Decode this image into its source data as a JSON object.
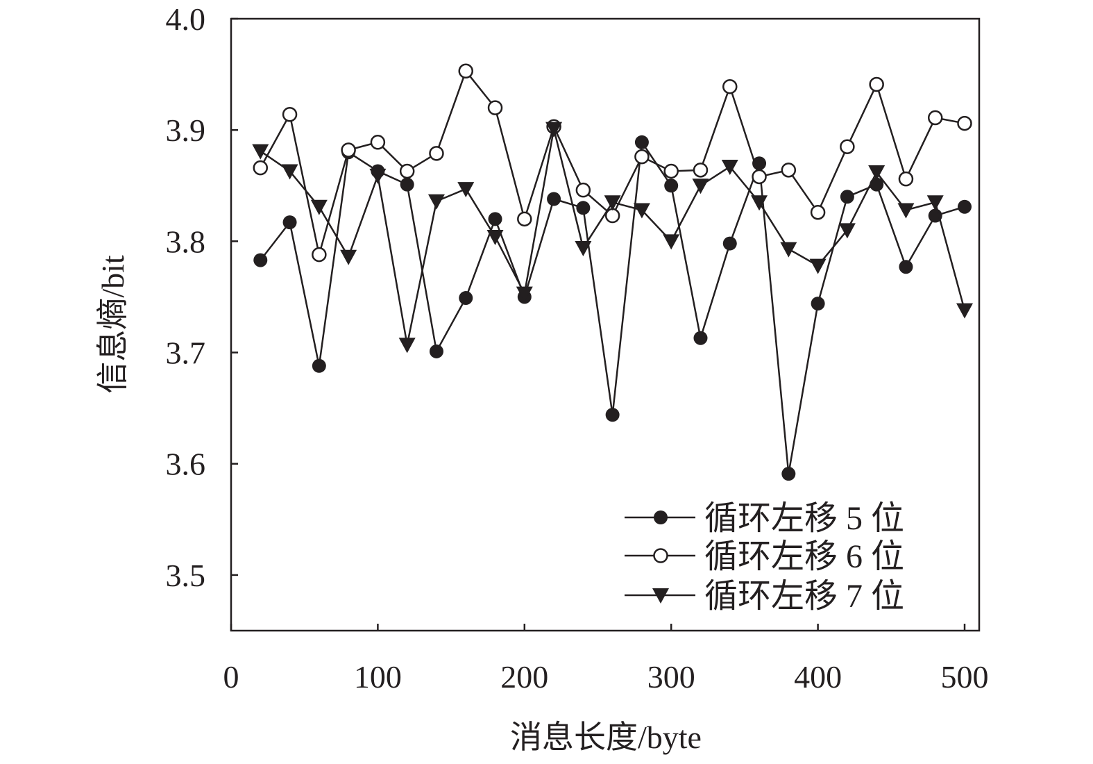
{
  "chart_data": {
    "type": "line",
    "title": "",
    "xlabel": "消息长度/byte",
    "ylabel": "信息熵/bit",
    "xlim": [
      0,
      510
    ],
    "ylim": [
      3.45,
      4.0
    ],
    "xticks": [
      0,
      100,
      200,
      300,
      400,
      500
    ],
    "xtick_labels": [
      "0",
      "100",
      "200",
      "300",
      "400",
      "500"
    ],
    "yticks": [
      3.5,
      3.6,
      3.7,
      3.8,
      3.9,
      4.0
    ],
    "ytick_labels": [
      "3.5",
      "3.6",
      "3.7",
      "3.8",
      "3.9",
      "4.0"
    ],
    "grid": false,
    "legend_position": "bottom-right",
    "x": [
      20,
      40,
      60,
      80,
      100,
      120,
      140,
      160,
      180,
      200,
      220,
      240,
      260,
      280,
      300,
      320,
      340,
      360,
      380,
      400,
      420,
      440,
      460,
      480,
      500
    ],
    "series": [
      {
        "name": "循环左移 5 位",
        "marker": "filled-circle",
        "values": [
          3.783,
          3.817,
          3.688,
          3.88,
          3.863,
          3.851,
          3.701,
          3.749,
          3.82,
          3.75,
          3.838,
          3.83,
          3.644,
          3.889,
          3.85,
          3.713,
          3.798,
          3.87,
          3.591,
          3.744,
          3.84,
          3.851,
          3.777,
          3.823,
          3.831
        ]
      },
      {
        "name": "循环左移 6 位",
        "marker": "open-circle",
        "values": [
          3.866,
          3.914,
          3.788,
          3.882,
          3.889,
          3.863,
          3.879,
          3.953,
          3.92,
          3.82,
          3.903,
          3.846,
          3.823,
          3.876,
          3.863,
          3.864,
          3.939,
          3.858,
          3.864,
          3.826,
          3.885,
          3.941,
          3.856,
          3.911,
          3.906
        ]
      },
      {
        "name": "循环左移 7 位",
        "marker": "filled-triangle-down",
        "values": [
          3.881,
          3.863,
          3.831,
          3.786,
          3.859,
          3.707,
          3.836,
          3.847,
          3.804,
          3.753,
          3.901,
          3.794,
          3.835,
          3.828,
          3.8,
          3.85,
          3.867,
          3.835,
          3.793,
          3.778,
          3.81,
          3.862,
          3.828,
          3.835,
          3.738
        ]
      }
    ]
  }
}
